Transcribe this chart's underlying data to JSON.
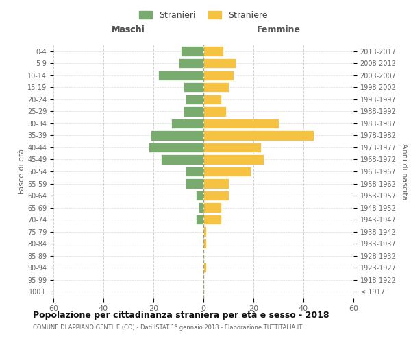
{
  "age_groups": [
    "100+",
    "95-99",
    "90-94",
    "85-89",
    "80-84",
    "75-79",
    "70-74",
    "65-69",
    "60-64",
    "55-59",
    "50-54",
    "45-49",
    "40-44",
    "35-39",
    "30-34",
    "25-29",
    "20-24",
    "15-19",
    "10-14",
    "5-9",
    "0-4"
  ],
  "birth_years": [
    "≤ 1917",
    "1918-1922",
    "1923-1927",
    "1928-1932",
    "1933-1937",
    "1938-1942",
    "1943-1947",
    "1948-1952",
    "1953-1957",
    "1958-1962",
    "1963-1967",
    "1968-1972",
    "1973-1977",
    "1978-1982",
    "1983-1987",
    "1988-1992",
    "1993-1997",
    "1998-2002",
    "2003-2007",
    "2008-2012",
    "2013-2017"
  ],
  "males": [
    0,
    0,
    0,
    0,
    0,
    0,
    3,
    2,
    3,
    7,
    7,
    17,
    22,
    21,
    13,
    8,
    7,
    8,
    18,
    10,
    9
  ],
  "females": [
    0,
    0,
    1,
    0,
    1,
    1,
    7,
    7,
    10,
    10,
    19,
    24,
    23,
    44,
    30,
    9,
    7,
    10,
    12,
    13,
    8
  ],
  "male_color": "#7aab6e",
  "female_color": "#f5c242",
  "bar_edge_color": "#ffffff",
  "background_color": "#ffffff",
  "grid_color": "#cccccc",
  "title": "Popolazione per cittadinanza straniera per età e sesso - 2018",
  "subtitle": "COMUNE DI APPIANO GENTILE (CO) - Dati ISTAT 1° gennaio 2018 - Elaborazione TUTTITALIA.IT",
  "ylabel_left": "Fasce di età",
  "ylabel_right": "Anni di nascita",
  "xlabel_left": "Maschi",
  "xlabel_right": "Femmine",
  "legend_male": "Stranieri",
  "legend_female": "Straniere",
  "xlim": 60,
  "xticks": [
    -60,
    -40,
    -20,
    0,
    20,
    40,
    60
  ],
  "xticklabels": [
    "60",
    "40",
    "20",
    "0",
    "20",
    "40",
    "60"
  ]
}
